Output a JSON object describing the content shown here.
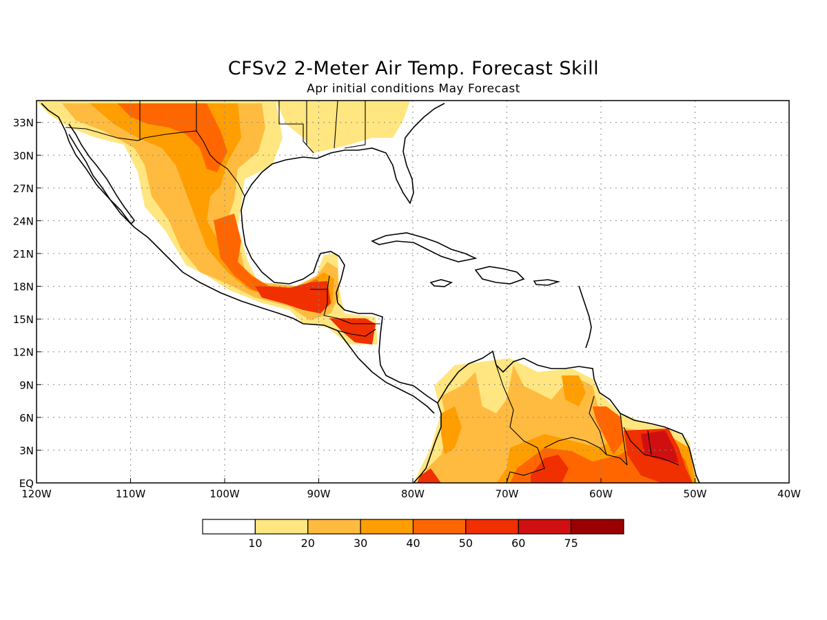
{
  "title": "CFSv2 2-Meter Air Temp. Forecast Skill",
  "subtitle": "Apr initial conditions   May Forecast",
  "map": {
    "lon_range": [
      -120,
      -40
    ],
    "lat_range": [
      0,
      35
    ],
    "lat_labels": [
      "33N",
      "30N",
      "27N",
      "24N",
      "21N",
      "18N",
      "15N",
      "12N",
      "9N",
      "6N",
      "3N",
      "EQ"
    ],
    "lon_labels": [
      "120W",
      "110W",
      "100W",
      "90W",
      "80W",
      "70W",
      "60W",
      "50W",
      "40W"
    ],
    "gridlines": "dotted"
  },
  "legend": {
    "tick_labels": [
      "10",
      "20",
      "30",
      "40",
      "50",
      "60",
      "75"
    ],
    "colors": [
      "#ffffff",
      "#ffe680",
      "#ffbb40",
      "#ff9e00",
      "#ff6600",
      "#f03000",
      "#d01010",
      "#9b0000"
    ]
  }
}
